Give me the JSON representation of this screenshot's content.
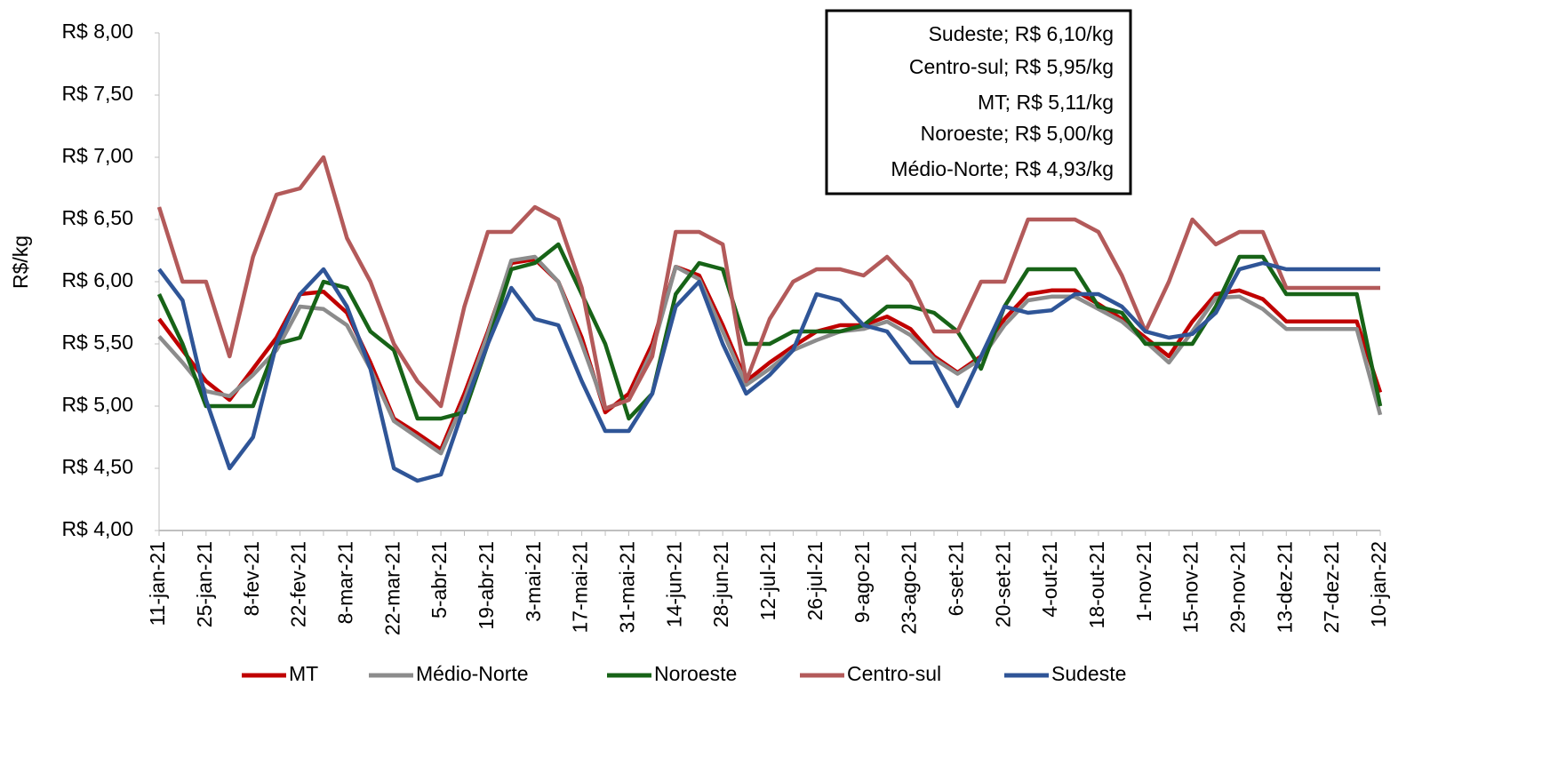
{
  "chart_data": {
    "type": "line",
    "ylabel": "R$/kg",
    "categories": [
      "11-jan-21",
      null,
      "25-jan-21",
      null,
      "8-fev-21",
      null,
      "22-fev-21",
      null,
      "8-mar-21",
      null,
      "22-mar-21",
      null,
      "5-abr-21",
      null,
      "19-abr-21",
      null,
      "3-mai-21",
      null,
      "17-mai-21",
      null,
      "31-mai-21",
      null,
      "14-jun-21",
      null,
      "28-jun-21",
      null,
      "12-jul-21",
      null,
      "26-jul-21",
      null,
      "9-ago-21",
      null,
      "23-ago-21",
      null,
      "6-set-21",
      null,
      "20-set-21",
      null,
      "4-out-21",
      null,
      "18-out-21",
      null,
      "1-nov-21",
      null,
      "15-nov-21",
      null,
      "29-nov-21",
      null,
      "13-dez-21",
      null,
      "27-dez-21",
      null,
      "10-jan-22"
    ],
    "series": [
      {
        "name": "MT",
        "color": "#c00000",
        "values": [
          5.7,
          5.45,
          5.2,
          5.05,
          5.3,
          5.55,
          5.9,
          5.92,
          5.75,
          5.35,
          4.9,
          4.78,
          4.65,
          5.1,
          5.6,
          6.15,
          6.18,
          6.0,
          5.55,
          4.95,
          5.1,
          5.5,
          6.12,
          6.05,
          5.65,
          5.2,
          5.35,
          5.48,
          5.6,
          5.65,
          5.65,
          5.72,
          5.62,
          5.4,
          5.27,
          5.4,
          5.7,
          5.9,
          5.93,
          5.93,
          5.82,
          5.7,
          5.55,
          5.4,
          5.68,
          5.9,
          5.93,
          5.86,
          5.68,
          5.68,
          5.68,
          5.68,
          5.11
        ]
      },
      {
        "name": "Médio-Norte",
        "color": "#8c8c8c",
        "values": [
          5.56,
          5.35,
          5.12,
          5.08,
          5.25,
          5.45,
          5.8,
          5.78,
          5.65,
          5.3,
          4.88,
          4.75,
          4.62,
          5.05,
          5.58,
          6.17,
          6.2,
          6.0,
          5.5,
          4.98,
          5.05,
          5.45,
          6.12,
          6.02,
          5.6,
          5.17,
          5.3,
          5.45,
          5.53,
          5.6,
          5.62,
          5.68,
          5.57,
          5.38,
          5.26,
          5.38,
          5.65,
          5.85,
          5.88,
          5.88,
          5.78,
          5.68,
          5.52,
          5.35,
          5.6,
          5.87,
          5.88,
          5.78,
          5.62,
          5.62,
          5.62,
          5.62,
          4.93
        ]
      },
      {
        "name": "Noroeste",
        "color": "#176317",
        "values": [
          5.9,
          5.5,
          5.0,
          5.0,
          5.0,
          5.5,
          5.55,
          6.0,
          5.95,
          5.6,
          5.45,
          4.9,
          4.9,
          4.95,
          5.5,
          6.1,
          6.15,
          6.3,
          5.9,
          5.5,
          4.9,
          5.1,
          5.9,
          6.15,
          6.1,
          5.5,
          5.5,
          5.6,
          5.6,
          5.6,
          5.65,
          5.8,
          5.8,
          5.75,
          5.6,
          5.3,
          5.8,
          6.1,
          6.1,
          6.1,
          5.8,
          5.75,
          5.5,
          5.5,
          5.5,
          5.8,
          6.2,
          6.2,
          5.9,
          5.9,
          5.9,
          5.9,
          5.0
        ]
      },
      {
        "name": "Centro-sul",
        "color": "#b35a5a",
        "values": [
          6.6,
          6.0,
          6.0,
          5.4,
          6.2,
          6.7,
          6.75,
          7.0,
          6.35,
          6.0,
          5.5,
          5.2,
          5.0,
          5.8,
          6.4,
          6.4,
          6.6,
          6.5,
          5.95,
          4.98,
          5.05,
          5.4,
          6.4,
          6.4,
          6.3,
          5.2,
          5.7,
          6.0,
          6.1,
          6.1,
          6.05,
          6.2,
          6.0,
          5.6,
          5.6,
          6.0,
          6.0,
          6.5,
          6.5,
          6.5,
          6.4,
          6.05,
          5.6,
          6.0,
          6.5,
          6.3,
          6.4,
          6.4,
          5.95,
          5.95,
          5.95,
          5.95,
          5.95
        ]
      },
      {
        "name": "Sudeste",
        "color": "#2f5597",
        "values": [
          6.1,
          5.85,
          5.05,
          4.5,
          4.75,
          5.5,
          5.9,
          6.1,
          5.8,
          5.3,
          4.5,
          4.4,
          4.45,
          5.0,
          5.5,
          5.95,
          5.7,
          5.65,
          5.2,
          4.8,
          4.8,
          5.1,
          5.8,
          6.0,
          5.5,
          5.1,
          5.25,
          5.45,
          5.9,
          5.85,
          5.65,
          5.6,
          5.35,
          5.35,
          5.0,
          5.4,
          5.8,
          5.75,
          5.77,
          5.9,
          5.9,
          5.8,
          5.6,
          5.55,
          5.58,
          5.75,
          6.1,
          6.15,
          6.1,
          6.1,
          6.1,
          6.1,
          6.1
        ]
      }
    ],
    "ylim": [
      4,
      8
    ],
    "yticks": [
      {
        "value": 4,
        "label": "R$ 4,00"
      },
      {
        "value": 4.5,
        "label": "R$ 4,50"
      },
      {
        "value": 5,
        "label": "R$ 5,00"
      },
      {
        "value": 5.5,
        "label": "R$ 5,50"
      },
      {
        "value": 6,
        "label": "R$ 6,00"
      },
      {
        "value": 6.5,
        "label": "R$ 6,50"
      },
      {
        "value": 7,
        "label": "R$ 7,00"
      },
      {
        "value": 7.5,
        "label": "R$ 7,50"
      },
      {
        "value": 8,
        "label": "R$ 8,00"
      }
    ],
    "annotations": [
      "Sudeste; R$ 6,10/kg",
      "Centro-sul; R$ 5,95/kg",
      "MT; R$ 5,11/kg",
      "Noroeste; R$ 5,00/kg",
      "Médio-Norte; R$ 4,93/kg"
    ],
    "legend": "bottom",
    "grid": false
  }
}
